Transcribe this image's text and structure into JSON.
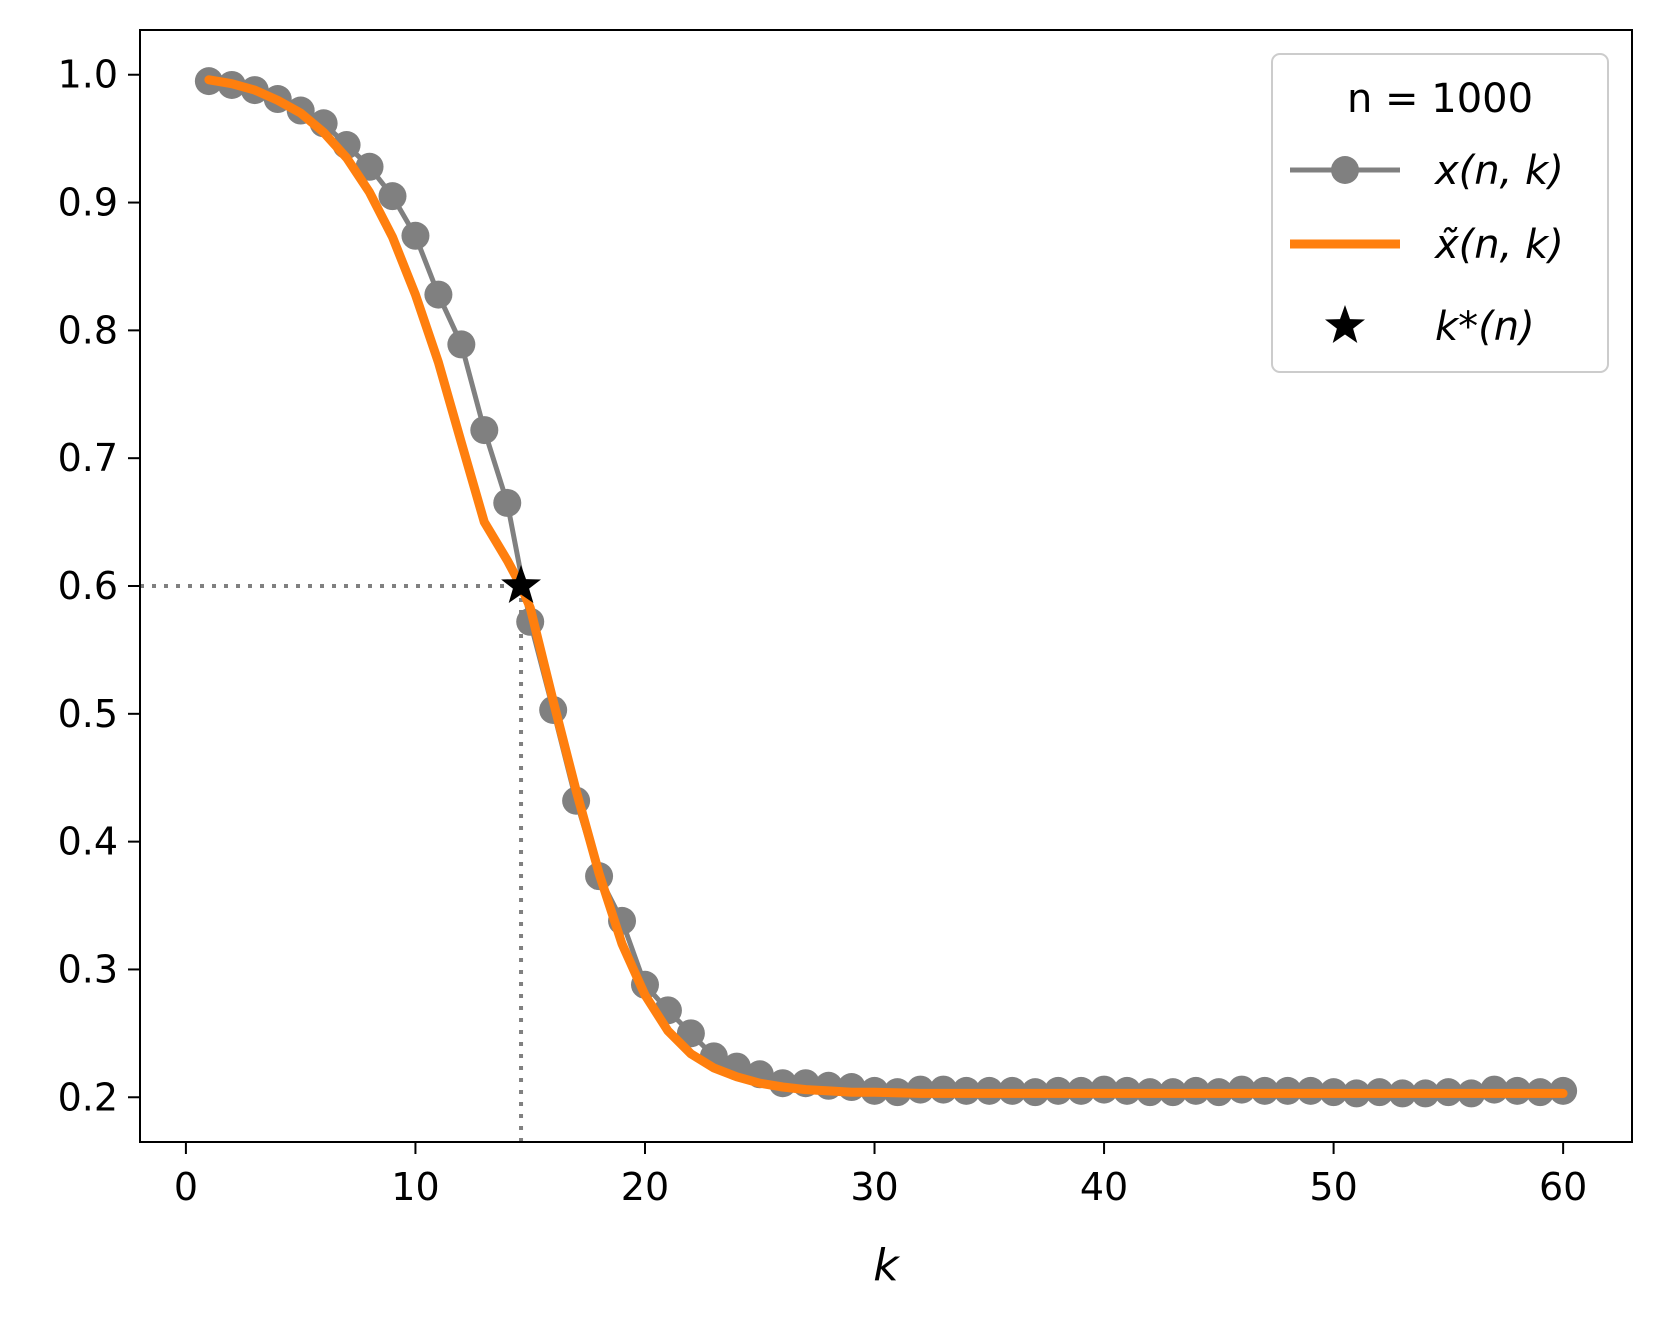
{
  "chart_data": {
    "type": "line",
    "xlabel": "k",
    "ylabel": "",
    "xlim": [
      -2,
      63
    ],
    "ylim": [
      0.165,
      1.035
    ],
    "xticks": [
      0,
      10,
      20,
      30,
      40,
      50,
      60
    ],
    "yticks": [
      0.2,
      0.3,
      0.4,
      0.5,
      0.6,
      0.7,
      0.8,
      0.9,
      1.0
    ],
    "ytick_labels": [
      "0.2",
      "0.3",
      "0.4",
      "0.5",
      "0.6",
      "0.7",
      "0.8",
      "0.9",
      "1.0"
    ],
    "grid": false,
    "legend": {
      "placement": "top-right",
      "title": "n = 1000",
      "entries": [
        "x(n, k)",
        "x̃(n, k)",
        "k*(n)"
      ]
    },
    "series": [
      {
        "name": "x(n, k)",
        "style": "line-with-circle-markers",
        "color": "#808080",
        "x": [
          1,
          2,
          3,
          4,
          5,
          6,
          7,
          8,
          9,
          10,
          11,
          12,
          13,
          14,
          15,
          16,
          17,
          18,
          19,
          20,
          21,
          22,
          23,
          24,
          25,
          26,
          27,
          28,
          29,
          30,
          31,
          32,
          33,
          34,
          35,
          36,
          37,
          38,
          39,
          40,
          41,
          42,
          43,
          44,
          45,
          46,
          47,
          48,
          49,
          50,
          51,
          52,
          53,
          54,
          55,
          56,
          57,
          58,
          59,
          60
        ],
        "y": [
          0.995,
          0.992,
          0.988,
          0.981,
          0.972,
          0.962,
          0.945,
          0.928,
          0.905,
          0.874,
          0.828,
          0.789,
          0.722,
          0.665,
          0.572,
          0.503,
          0.432,
          0.373,
          0.338,
          0.288,
          0.268,
          0.25,
          0.232,
          0.224,
          0.218,
          0.211,
          0.211,
          0.209,
          0.208,
          0.205,
          0.204,
          0.206,
          0.206,
          0.205,
          0.205,
          0.205,
          0.204,
          0.205,
          0.205,
          0.206,
          0.205,
          0.204,
          0.204,
          0.205,
          0.204,
          0.206,
          0.205,
          0.205,
          0.205,
          0.204,
          0.203,
          0.204,
          0.203,
          0.203,
          0.204,
          0.203,
          0.206,
          0.205,
          0.204,
          0.205
        ]
      },
      {
        "name": "x̃(n, k)",
        "style": "line",
        "color": "#ff7f0e",
        "x": [
          1,
          2,
          3,
          4,
          5,
          6,
          7,
          8,
          9,
          10,
          11,
          12,
          13,
          14,
          14.6,
          15,
          16,
          17,
          18,
          19,
          20,
          21,
          22,
          23,
          24,
          25,
          26,
          27,
          28,
          29,
          30,
          32,
          35,
          40,
          45,
          50,
          55,
          60
        ],
        "y": [
          0.996,
          0.993,
          0.988,
          0.98,
          0.97,
          0.955,
          0.935,
          0.908,
          0.873,
          0.828,
          0.775,
          0.712,
          0.65,
          0.62,
          0.6,
          0.583,
          0.51,
          0.44,
          0.375,
          0.32,
          0.28,
          0.252,
          0.234,
          0.223,
          0.216,
          0.211,
          0.208,
          0.206,
          0.205,
          0.204,
          0.204,
          0.203,
          0.203,
          0.203,
          0.203,
          0.203,
          0.203,
          0.203
        ]
      },
      {
        "name": "k*(n)",
        "style": "star-marker",
        "color": "#000000",
        "x": [
          14.6
        ],
        "y": [
          0.6
        ]
      }
    ],
    "reference_lines": [
      {
        "type": "horizontal",
        "y": 0.6,
        "x_from": -2,
        "x_to": 14.6,
        "style": "dotted",
        "color": "#808080"
      },
      {
        "type": "vertical",
        "x": 14.6,
        "y_from": 0.165,
        "y_to": 0.6,
        "style": "dotted",
        "color": "#808080"
      }
    ]
  }
}
